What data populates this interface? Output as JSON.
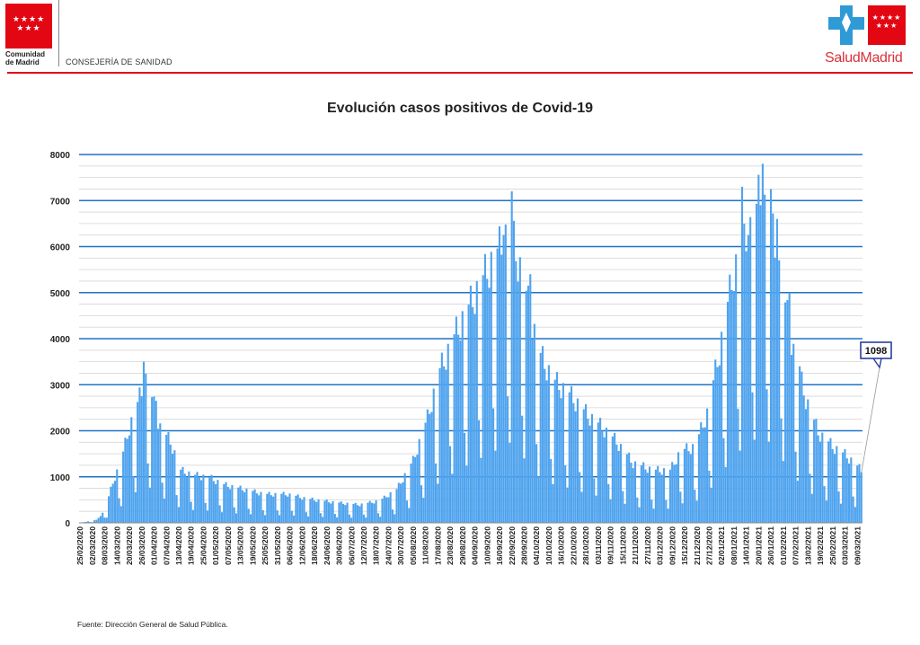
{
  "header": {
    "left_logo_stars": "★★★★\n★★★",
    "left_logo_line1": "Comunidad",
    "left_logo_line2": "de Madrid",
    "department": "CONSEJERÍA DE SANIDAD",
    "right_logo_text": "SaludMadrid",
    "colors": {
      "brand_red": "#e30613",
      "salud_red": "#d9303a",
      "salud_blue": "#2e9bd6"
    }
  },
  "chart_data": {
    "type": "bar",
    "title": "Evolución casos positivos de Covid-19",
    "xlabel": "",
    "ylabel": "",
    "ylim": [
      0,
      8000
    ],
    "yticks": [
      0,
      1000,
      2000,
      3000,
      4000,
      5000,
      6000,
      7000,
      8000
    ],
    "grid": true,
    "bar_color": "#4fa3ee",
    "gridline_major_color": "#1f73c6",
    "x_start": "2020-02-25",
    "x_end": "2021-03-11",
    "x_tick_labels": [
      "25/02/2020",
      "02/03/2020",
      "08/03/2020",
      "14/03/2020",
      "20/03/2020",
      "26/03/2020",
      "01/04/2020",
      "07/04/2020",
      "13/04/2020",
      "19/04/2020",
      "25/04/2020",
      "01/05/2020",
      "07/05/2020",
      "13/05/2020",
      "19/05/2020",
      "25/05/2020",
      "31/05/2020",
      "06/06/2020",
      "12/06/2020",
      "18/06/2020",
      "24/06/2020",
      "30/06/2020",
      "06/07/2020",
      "12/07/2020",
      "18/07/2020",
      "24/07/2020",
      "30/07/2020",
      "05/08/2020",
      "11/08/2020",
      "17/08/2020",
      "23/08/2020",
      "29/08/2020",
      "04/09/2020",
      "10/09/2020",
      "16/09/2020",
      "22/09/2020",
      "28/09/2020",
      "04/10/2020",
      "10/10/2020",
      "16/10/2020",
      "22/10/2020",
      "28/10/2020",
      "03/11/2020",
      "09/11/2020",
      "15/11/2020",
      "21/11/2020",
      "27/11/2020",
      "03/12/2020",
      "09/12/2020",
      "15/12/2020",
      "21/12/2020",
      "27/12/2020",
      "02/01/2021",
      "08/01/2021",
      "14/01/2021",
      "20/01/2021",
      "26/01/2021",
      "01/02/2021",
      "07/02/2021",
      "13/02/2021",
      "19/02/2021",
      "25/02/2021",
      "03/03/2021",
      "09/03/2021"
    ],
    "anchors": [
      [
        "2020-02-25",
        0
      ],
      [
        "2020-03-04",
        60
      ],
      [
        "2020-03-08",
        250
      ],
      [
        "2020-03-12",
        850
      ],
      [
        "2020-03-16",
        1300
      ],
      [
        "2020-03-20",
        2000
      ],
      [
        "2020-03-24",
        2500
      ],
      [
        "2020-03-28",
        3000
      ],
      [
        "2020-03-31",
        2600
      ],
      [
        "2020-04-04",
        2000
      ],
      [
        "2020-04-09",
        1700
      ],
      [
        "2020-04-14",
        1100
      ],
      [
        "2020-04-20",
        1000
      ],
      [
        "2020-04-28",
        950
      ],
      [
        "2020-05-05",
        800
      ],
      [
        "2020-05-15",
        700
      ],
      [
        "2020-05-25",
        600
      ],
      [
        "2020-06-05",
        600
      ],
      [
        "2020-06-15",
        500
      ],
      [
        "2020-06-30",
        420
      ],
      [
        "2020-07-10",
        380
      ],
      [
        "2020-07-20",
        470
      ],
      [
        "2020-07-28",
        700
      ],
      [
        "2020-08-05",
        1300
      ],
      [
        "2020-08-12",
        2200
      ],
      [
        "2020-08-18",
        3200
      ],
      [
        "2020-08-26",
        4000
      ],
      [
        "2020-09-02",
        4600
      ],
      [
        "2020-09-10",
        5300
      ],
      [
        "2020-09-18",
        5900
      ],
      [
        "2020-09-21",
        6200
      ],
      [
        "2020-09-28",
        5000
      ],
      [
        "2020-10-05",
        3600
      ],
      [
        "2020-10-12",
        3000
      ],
      [
        "2020-10-20",
        2700
      ],
      [
        "2020-10-28",
        2300
      ],
      [
        "2020-11-05",
        2000
      ],
      [
        "2020-11-12",
        1700
      ],
      [
        "2020-11-20",
        1250
      ],
      [
        "2020-11-30",
        1100
      ],
      [
        "2020-12-08",
        1100
      ],
      [
        "2020-12-13",
        1500
      ],
      [
        "2020-12-20",
        1600
      ],
      [
        "2020-12-26",
        2300
      ],
      [
        "2021-01-01",
        3600
      ],
      [
        "2021-01-08",
        5300
      ],
      [
        "2021-01-15",
        6000
      ],
      [
        "2021-01-21",
        6900
      ],
      [
        "2021-01-27",
        6000
      ],
      [
        "2021-02-01",
        4800
      ],
      [
        "2021-02-06",
        3600
      ],
      [
        "2021-02-12",
        2600
      ],
      [
        "2021-02-18",
        1900
      ],
      [
        "2021-02-25",
        1600
      ],
      [
        "2021-03-04",
        1400
      ],
      [
        "2021-03-11",
        1098
      ]
    ],
    "spikes": [
      [
        "2020-03-27",
        3500
      ],
      [
        "2020-04-02",
        2650
      ],
      [
        "2020-09-18",
        6250
      ],
      [
        "2020-09-22",
        7200
      ],
      [
        "2020-10-01",
        5400
      ],
      [
        "2021-01-12",
        7300
      ],
      [
        "2021-01-15",
        6250
      ],
      [
        "2021-01-22",
        7800
      ],
      [
        "2021-01-26",
        7250
      ],
      [
        "2021-01-29",
        6600
      ],
      [
        "2021-02-04",
        5000
      ],
      [
        "2021-02-09",
        3400
      ]
    ],
    "callout_label": "1098"
  },
  "footnote": "Fuente: Dirección General de Salud Pública."
}
